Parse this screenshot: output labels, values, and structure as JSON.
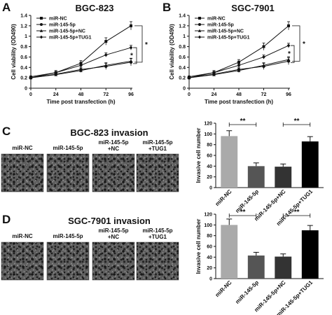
{
  "panels": {
    "A": {
      "letter": "A",
      "title": "BGC-823"
    },
    "B": {
      "letter": "B",
      "title": "SGC-7901"
    },
    "C": {
      "letter": "C",
      "title": "BGC-823 invasion"
    },
    "D": {
      "letter": "D",
      "title": "SGC-7901 invasion"
    }
  },
  "image_labels": [
    [
      "miR-NC"
    ],
    [
      "miR-145-5p"
    ],
    [
      "miR-145-5p",
      "+NC"
    ],
    [
      "miR-145-5p",
      "+TUG1"
    ]
  ],
  "chart_data": [
    {
      "id": "A",
      "type": "line",
      "title": "BGC-823",
      "xlabel": "Time post transfection (h)",
      "ylabel": "Cell viability (OD490)",
      "x": [
        0,
        24,
        48,
        72,
        96
      ],
      "xlim": [
        0,
        96
      ],
      "ylim": [
        0,
        1.4
      ],
      "yticks": [
        "0",
        "0.2",
        "0.4",
        "0.6",
        "0.8",
        "1",
        "1.2",
        "1.4"
      ],
      "xticks": [
        "0",
        "24",
        "48",
        "72",
        "96"
      ],
      "series": [
        {
          "name": "miR-NC",
          "values": [
            0.2,
            0.3,
            0.48,
            0.9,
            1.2
          ],
          "marker": "square"
        },
        {
          "name": "miR-145-5p",
          "values": [
            0.2,
            0.27,
            0.36,
            0.42,
            0.5
          ],
          "marker": "circle"
        },
        {
          "name": "miR-145-5p+NC",
          "values": [
            0.2,
            0.26,
            0.34,
            0.44,
            0.52
          ],
          "marker": "triangle"
        },
        {
          "name": "miR-145-5p+TUG1",
          "values": [
            0.22,
            0.3,
            0.44,
            0.64,
            0.78
          ],
          "marker": "diamond"
        }
      ],
      "errors": [
        0.03,
        0.04,
        0.05,
        0.07,
        0.08
      ],
      "significance": [
        "*",
        "*"
      ],
      "legend": "top-left"
    },
    {
      "id": "B",
      "type": "line",
      "title": "SGC-7901",
      "xlabel": "Time post transfection (h)",
      "ylabel": "Cell viability (OD490)",
      "x": [
        0,
        24,
        48,
        72,
        96
      ],
      "xlim": [
        0,
        96
      ],
      "ylim": [
        0,
        1.4
      ],
      "yticks": [
        "0",
        "0.2",
        "0.4",
        "0.6",
        "0.8",
        "1",
        "1.2",
        "1.4"
      ],
      "xticks": [
        "0",
        "24",
        "48",
        "72",
        "96"
      ],
      "series": [
        {
          "name": "miR-NC",
          "values": [
            0.2,
            0.3,
            0.5,
            0.8,
            1.2
          ],
          "marker": "square"
        },
        {
          "name": "miR-145-5p",
          "values": [
            0.2,
            0.27,
            0.36,
            0.42,
            0.52
          ],
          "marker": "circle"
        },
        {
          "name": "miR-145-5p+NC",
          "values": [
            0.2,
            0.26,
            0.34,
            0.44,
            0.55
          ],
          "marker": "triangle"
        },
        {
          "name": "miR-145-5p+TUG1",
          "values": [
            0.22,
            0.3,
            0.44,
            0.6,
            0.82
          ],
          "marker": "diamond"
        }
      ],
      "errors": [
        0.03,
        0.04,
        0.05,
        0.07,
        0.08
      ],
      "significance": [
        "*",
        "*"
      ],
      "legend": "top-left"
    },
    {
      "id": "C",
      "type": "bar",
      "ylabel": "Invasive cell number",
      "ylim": [
        0,
        120
      ],
      "yticks": [
        "0",
        "20",
        "40",
        "60",
        "80",
        "100",
        "120"
      ],
      "categories": [
        "miR-NC",
        "miR-145-5p",
        "miR-145-5p+NC",
        "miR-145-5p+TUG1"
      ],
      "values": [
        96,
        40,
        39,
        86
      ],
      "errors": [
        10,
        6,
        5,
        9
      ],
      "colors": [
        "#aaaaaa",
        "#555555",
        "#333333",
        "#000000"
      ],
      "significance": [
        "**",
        "**"
      ]
    },
    {
      "id": "D",
      "type": "bar",
      "ylabel": "Invasive cell number",
      "ylim": [
        0,
        120
      ],
      "yticks": [
        "0",
        "20",
        "40",
        "60",
        "80",
        "100",
        "120"
      ],
      "categories": [
        "miR-NC",
        "miR-145-5p",
        "miR-145-5p+NC",
        "miR-145-5p+TUG1"
      ],
      "values": [
        100,
        43,
        41,
        90
      ],
      "errors": [
        11,
        6,
        5,
        9
      ],
      "colors": [
        "#aaaaaa",
        "#555555",
        "#333333",
        "#000000"
      ],
      "significance": [
        "**",
        "**"
      ]
    }
  ]
}
